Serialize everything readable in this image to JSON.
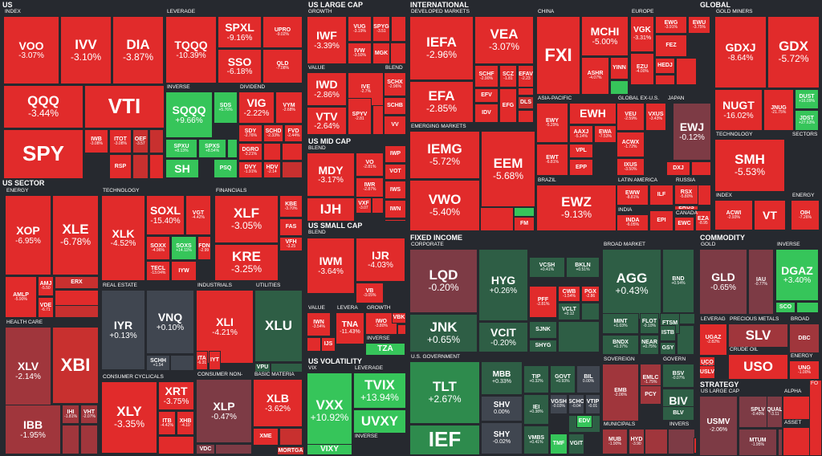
{
  "sections": {
    "us": "US",
    "us_large_cap": "US LARGE CAP",
    "international": "INTERNATIONAL",
    "global": "GLOBAL",
    "us_sector": "US SECTOR",
    "us_mid_cap": "US MID CAP",
    "us_small_cap": "US SMALL CAP",
    "fixed_income": "FIXED INCOME",
    "commodity": "COMMODITY",
    "us_volatility": "US VOLATILITY",
    "strategy": "STRATEGY"
  },
  "groups": {
    "index": "INDEX",
    "leverage": "LEVERAGE",
    "inverse": "INVERSE",
    "dividend": "DIVIDEND",
    "growth": "GROWTH",
    "value": "VALUE",
    "blend": "BLEND",
    "developed_markets": "DEVELOPED MARKETS",
    "china": "CHINA",
    "europe": "EUROPE",
    "asia_pacific": "ASIA-PACIFIC",
    "global_ex_us": "GLOBAL EX-U.S.",
    "japan": "JAPAN",
    "emerging_markets": "EMERGING MARKETS",
    "brazil": "BRAZIL",
    "latin_america": "LATIN AMERICA",
    "russia": "RUSSIA",
    "india": "INDIA",
    "canada": "CANADA",
    "gold_miners": "GOLD MINERS",
    "technology": "TECHNOLOGY",
    "sectors": "SECTORS",
    "g_index": "INDEX",
    "g_energy": "ENERGY",
    "energy": "ENERGY",
    "financials": "FINANCIALS",
    "real_estate": "REAL ESTATE",
    "industrials": "INDUSTRIALS",
    "utilities": "UTILITIES",
    "health_care": "HEALTH CARE",
    "consumer_cyclicals": "CONSUMER CYCLICALS",
    "consumer_non": "CONSUMER NON-",
    "basic_materia": "BASIC MATERIA",
    "mid_blend": "BLEND",
    "small_blend": "BLEND",
    "small_value": "VALUE",
    "small_levera": "LEVERA",
    "small_growth": "GROWTH",
    "small_inverse": "INVERSE",
    "vix": "VIX",
    "vol_leverage": "LEVERAGE",
    "vol_inverse": "INVERSE",
    "corporate": "CORPORATE",
    "broad_market": "BROAD MARKET",
    "us_government": "U.S. GOVERNMENT",
    "sovereign": "SOVEREIGN",
    "govern": "GOVERN",
    "municipals": "MUNICIPALS",
    "invers": "INVERS",
    "gold": "GOLD",
    "c_inverse": "INVERSE",
    "leverag": "LEVERAG",
    "precious_metals": "PRECIOUS METALS",
    "broad": "BROAD",
    "crude_oil": "CRUDE OIL",
    "energy2": "ENERGY",
    "s_us_large_cap": "US LARGE CAP",
    "alpha": "ALPHA",
    "asset": "ASSET",
    "fo": "FO"
  },
  "tiles": [
    {
      "id": "VOO",
      "tk": "VOO",
      "ch": "-3.07%"
    },
    {
      "id": "IVV",
      "tk": "IVV",
      "ch": "-3.10%"
    },
    {
      "id": "DIA",
      "tk": "DIA",
      "ch": "-3.87%"
    },
    {
      "id": "QQQ",
      "tk": "QQQ",
      "ch": "-3.44%"
    },
    {
      "id": "VTI",
      "tk": "VTI",
      "ch": ""
    },
    {
      "id": "SPY",
      "tk": "SPY",
      "ch": ""
    },
    {
      "id": "IWB",
      "tk": "IWB",
      "ch": "-3.08%"
    },
    {
      "id": "ITOT",
      "tk": "ITOT",
      "ch": "-3.08%"
    },
    {
      "id": "OEF",
      "tk": "OEF",
      "ch": "-3.57"
    },
    {
      "id": "RSP",
      "tk": "RSP",
      "ch": ""
    },
    {
      "id": "TQQQ",
      "tk": "TQQQ",
      "ch": "-10.39%"
    },
    {
      "id": "SPXL",
      "tk": "SPXL",
      "ch": "-9.16%"
    },
    {
      "id": "UPRO",
      "tk": "UPRO",
      "ch": "-9.02%"
    },
    {
      "id": "SSO",
      "tk": "SSO",
      "ch": "-6.18%"
    },
    {
      "id": "QLD",
      "tk": "QLD",
      "ch": "-7.08%"
    },
    {
      "id": "SQQQ",
      "tk": "SQQQ",
      "ch": "+9.66%"
    },
    {
      "id": "SDS",
      "tk": "SDS",
      "ch": "+5.76%"
    },
    {
      "id": "SPXU",
      "tk": "SPXU",
      "ch": "+8.13%"
    },
    {
      "id": "SPXS",
      "tk": "SPXS",
      "ch": "+8.54%"
    },
    {
      "id": "SH",
      "tk": "SH",
      "ch": ""
    },
    {
      "id": "PSQ",
      "tk": "PSQ",
      "ch": ""
    },
    {
      "id": "VIG",
      "tk": "VIG",
      "ch": "-2.22%"
    },
    {
      "id": "VYM",
      "tk": "VYM",
      "ch": "-2.68%"
    },
    {
      "id": "SDY",
      "tk": "SDY",
      "ch": "-2.76%"
    },
    {
      "id": "SCHD",
      "tk": "SCHD",
      "ch": "-2.33%"
    },
    {
      "id": "FVD",
      "tk": "FVD",
      "ch": "-2.44%"
    },
    {
      "id": "DGRO",
      "tk": "DGRO",
      "ch": "-3.21%"
    },
    {
      "id": "DVY",
      "tk": "DVY",
      "ch": "-1.91%"
    },
    {
      "id": "HDV",
      "tk": "HDV",
      "ch": "-2.14"
    },
    {
      "id": "IWF",
      "tk": "IWF",
      "ch": "-3.39%"
    },
    {
      "id": "VUG",
      "tk": "VUG",
      "ch": "-3.19%"
    },
    {
      "id": "SPYG",
      "tk": "SPYG",
      "ch": "-3.51"
    },
    {
      "id": "IWD",
      "tk": "IWD",
      "ch": "-2.86%"
    },
    {
      "id": "IVE",
      "tk": "IVE",
      "ch": "-2.7%"
    },
    {
      "id": "SCHX",
      "tk": "SCHX",
      "ch": "-2.96%"
    },
    {
      "id": "VTV",
      "tk": "VTV",
      "ch": "-2.64%"
    },
    {
      "id": "SPYV",
      "tk": "SPYV",
      "ch": "-2.81"
    },
    {
      "id": "SCHB",
      "tk": "SCHB",
      "ch": ""
    },
    {
      "id": "VV",
      "tk": "VV",
      "ch": ""
    },
    {
      "id": "IVW",
      "tk": "IVW",
      "ch": "-3.50%"
    },
    {
      "id": "MGK",
      "tk": "MGK",
      "ch": ""
    },
    {
      "id": "IEFA",
      "tk": "IEFA",
      "ch": "-2.96%"
    },
    {
      "id": "VEA",
      "tk": "VEA",
      "ch": "-3.07%"
    },
    {
      "id": "EFA",
      "tk": "EFA",
      "ch": "-2.85%"
    },
    {
      "id": "SCHF",
      "tk": "SCHF",
      "ch": "-2.90%"
    },
    {
      "id": "SCZ",
      "tk": "SCZ",
      "ch": "-1.81"
    },
    {
      "id": "EFAV",
      "tk": "EFAV",
      "ch": "-2.23"
    },
    {
      "id": "EFV",
      "tk": "EFV",
      "ch": ""
    },
    {
      "id": "IDV",
      "tk": "IDV",
      "ch": ""
    },
    {
      "id": "EFG",
      "tk": "EFG",
      "ch": ""
    },
    {
      "id": "DLS",
      "tk": "DLS",
      "ch": ""
    },
    {
      "id": "FXI",
      "tk": "FXI",
      "ch": ""
    },
    {
      "id": "MCHI",
      "tk": "MCHI",
      "ch": "-5.00%"
    },
    {
      "id": "ASHR",
      "tk": "ASHR",
      "ch": "-4.07%"
    },
    {
      "id": "YINN",
      "tk": "YINN",
      "ch": ""
    },
    {
      "id": "VGK",
      "tk": "VGK",
      "ch": "-3.31%"
    },
    {
      "id": "EWG",
      "tk": "EWG",
      "ch": "-3.91%"
    },
    {
      "id": "EWU",
      "tk": "EWU",
      "ch": "-3.75%"
    },
    {
      "id": "FEZ",
      "tk": "FEZ",
      "ch": ""
    },
    {
      "id": "EZU",
      "tk": "EZU",
      "ch": "-4.00%"
    },
    {
      "id": "HEDJ",
      "tk": "HEDJ",
      "ch": ""
    },
    {
      "id": "EWY",
      "tk": "EWY",
      "ch": "-5.29%"
    },
    {
      "id": "EWH",
      "tk": "EWH",
      "ch": ""
    },
    {
      "id": "AAXJ",
      "tk": "AAXJ",
      "ch": "-5.14%"
    },
    {
      "id": "EWA",
      "tk": "EWA",
      "ch": "-7.53%"
    },
    {
      "id": "EWT",
      "tk": "EWT",
      "ch": "-6.81%"
    },
    {
      "id": "VPL",
      "tk": "VPL",
      "ch": ""
    },
    {
      "id": "EPP",
      "tk": "EPP",
      "ch": ""
    },
    {
      "id": "VEU",
      "tk": "VEU",
      "ch": "-2.59%"
    },
    {
      "id": "VXUS",
      "tk": "VXUS",
      "ch": "-3.43%"
    },
    {
      "id": "ACWX",
      "tk": "ACWX",
      "ch": "-1.72%"
    },
    {
      "id": "IXUS",
      "tk": "IXUS",
      "ch": "-3.50%"
    },
    {
      "id": "EWJ",
      "tk": "EWJ",
      "ch": "-0.12%"
    },
    {
      "id": "DXJ",
      "tk": "DXJ",
      "ch": ""
    },
    {
      "id": "IEMG",
      "tk": "IEMG",
      "ch": "-5.72%"
    },
    {
      "id": "EEM",
      "tk": "EEM",
      "ch": "-5.68%"
    },
    {
      "id": "VWO",
      "tk": "VWO",
      "ch": "-5.40%"
    },
    {
      "id": "EWZ",
      "tk": "EWZ",
      "ch": "-9.13%"
    },
    {
      "id": "EWW",
      "tk": "EWW",
      "ch": "-8.81%"
    },
    {
      "id": "ILF",
      "tk": "ILF",
      "ch": ""
    },
    {
      "id": "RSX",
      "tk": "RSX",
      "ch": "-5.80%"
    },
    {
      "id": "ERUS",
      "tk": "ERUS",
      "ch": ""
    },
    {
      "id": "INDA",
      "tk": "INDA",
      "ch": "-6.05%"
    },
    {
      "id": "EPI",
      "tk": "EPI",
      "ch": ""
    },
    {
      "id": "EWC",
      "tk": "EWC",
      "ch": ""
    },
    {
      "id": "EZA",
      "tk": "EZA",
      "ch": "-8.95"
    },
    {
      "id": "FM",
      "tk": "FM",
      "ch": ""
    },
    {
      "id": "GDXJ",
      "tk": "GDXJ",
      "ch": "-8.64%"
    },
    {
      "id": "GDX",
      "tk": "GDX",
      "ch": "-5.72%"
    },
    {
      "id": "NUGT",
      "tk": "NUGT",
      "ch": "-16.02%"
    },
    {
      "id": "JNUG",
      "tk": "JNUG",
      "ch": "-21.75%"
    },
    {
      "id": "DUST",
      "tk": "DUST",
      "ch": "+16.09%"
    },
    {
      "id": "JDST",
      "tk": "JDST",
      "ch": "+27.63%"
    },
    {
      "id": "SMH",
      "tk": "SMH",
      "ch": "-5.53%"
    },
    {
      "id": "ACWI",
      "tk": "ACWI",
      "ch": "-2.93%"
    },
    {
      "id": "VT",
      "tk": "VT",
      "ch": ""
    },
    {
      "id": "OIH",
      "tk": "OIH",
      "ch": "-7.26%"
    },
    {
      "id": "XOP",
      "tk": "XOP",
      "ch": "-6.95%"
    },
    {
      "id": "XLE",
      "tk": "XLE",
      "ch": "-6.78%"
    },
    {
      "id": "AMLP",
      "tk": "AMLP",
      "ch": "-5.90%"
    },
    {
      "id": "AMJ",
      "tk": "AMJ",
      "ch": "-5.50"
    },
    {
      "id": "VDE",
      "tk": "VDE",
      "ch": "-6.71"
    },
    {
      "id": "ERX",
      "tk": "ERX",
      "ch": ""
    },
    {
      "id": "XLK",
      "tk": "XLK",
      "ch": "-4.52%"
    },
    {
      "id": "SOXL",
      "tk": "SOXL",
      "ch": "-15.40%"
    },
    {
      "id": "VGT",
      "tk": "VGT",
      "ch": "-4.42%"
    },
    {
      "id": "SOXX",
      "tk": "SOXX",
      "ch": "-4.96%"
    },
    {
      "id": "SOXS",
      "tk": "SOXS",
      "ch": "+14.11%"
    },
    {
      "id": "FDN",
      "tk": "FDN",
      "ch": "-2.99"
    },
    {
      "id": "TECL",
      "tk": "TECL",
      "ch": "-13.04%"
    },
    {
      "id": "IYW",
      "tk": "IYW",
      "ch": ""
    },
    {
      "id": "XLF",
      "tk": "XLF",
      "ch": "-3.05%"
    },
    {
      "id": "KBE",
      "tk": "KBE",
      "ch": "-3.70%"
    },
    {
      "id": "FAS",
      "tk": "FAS",
      "ch": ""
    },
    {
      "id": "KRE",
      "tk": "KRE",
      "ch": "-3.25%"
    },
    {
      "id": "VFH",
      "tk": "VFH",
      "ch": "-3.25"
    },
    {
      "id": "IYR",
      "tk": "IYR",
      "ch": "+0.13%"
    },
    {
      "id": "VNQ",
      "tk": "VNQ",
      "ch": "+0.10%"
    },
    {
      "id": "SCHH",
      "tk": "SCHH",
      "ch": "+1.54"
    },
    {
      "id": "XLI",
      "tk": "XLI",
      "ch": "-4.21%"
    },
    {
      "id": "ITA",
      "tk": "ITA",
      "ch": "-6.31"
    },
    {
      "id": "IYT",
      "tk": "IYT",
      "ch": ""
    },
    {
      "id": "XLU",
      "tk": "XLU",
      "ch": ""
    },
    {
      "id": "VPU",
      "tk": "VPU",
      "ch": ""
    },
    {
      "id": "XLV",
      "tk": "XLV",
      "ch": "-2.14%"
    },
    {
      "id": "XBI",
      "tk": "XBI",
      "ch": ""
    },
    {
      "id": "IBB",
      "tk": "IBB",
      "ch": "-1.95%"
    },
    {
      "id": "IHI",
      "tk": "IHI",
      "ch": "-1.81%"
    },
    {
      "id": "VHT",
      "tk": "VHT",
      "ch": "-2.07%"
    },
    {
      "id": "XLY",
      "tk": "XLY",
      "ch": "-3.35%"
    },
    {
      "id": "XRT",
      "tk": "XRT",
      "ch": "-3.75%"
    },
    {
      "id": "ITB",
      "tk": "ITB",
      "ch": "-4.42%"
    },
    {
      "id": "XHB",
      "tk": "XHB",
      "ch": "-4.10"
    },
    {
      "id": "XLP",
      "tk": "XLP",
      "ch": "-0.47%"
    },
    {
      "id": "VDC",
      "tk": "VDC",
      "ch": ""
    },
    {
      "id": "XLB",
      "tk": "XLB",
      "ch": "-3.62%"
    },
    {
      "id": "XME",
      "tk": "XME",
      "ch": ""
    },
    {
      "id": "MORTGA",
      "tk": "MORTGA",
      "ch": ""
    },
    {
      "id": "MDY",
      "tk": "MDY",
      "ch": "-3.17%"
    },
    {
      "id": "VO",
      "tk": "VO",
      "ch": "-2.81%"
    },
    {
      "id": "IJH",
      "tk": "IJH",
      "ch": ""
    },
    {
      "id": "IWR",
      "tk": "IWR",
      "ch": "-2.87%"
    },
    {
      "id": "IWP",
      "tk": "IWP",
      "ch": ""
    },
    {
      "id": "VOT",
      "tk": "VOT",
      "ch": ""
    },
    {
      "id": "IWS",
      "tk": "IWS",
      "ch": ""
    },
    {
      "id": "VXF",
      "tk": "VXF",
      "ch": "-3.07"
    },
    {
      "id": "IWN",
      "tk": "IWN",
      "ch": ""
    },
    {
      "id": "IWM",
      "tk": "IWM",
      "ch": "-3.64%"
    },
    {
      "id": "IJR",
      "tk": "IJR",
      "ch": "-4.03%"
    },
    {
      "id": "VB",
      "tk": "VB",
      "ch": "-3.05%"
    },
    {
      "id": "IWN2",
      "tk": "IWN",
      "ch": "-3.54%"
    },
    {
      "id": "TNA",
      "tk": "TNA",
      "ch": "-11.43%"
    },
    {
      "id": "IWO",
      "tk": "IWO",
      "ch": "-3.80%"
    },
    {
      "id": "VBK",
      "tk": "VBK",
      "ch": ""
    },
    {
      "id": "IJS",
      "tk": "IJS",
      "ch": ""
    },
    {
      "id": "TZA",
      "tk": "TZA",
      "ch": ""
    },
    {
      "id": "VXX",
      "tk": "VXX",
      "ch": "+10.92%"
    },
    {
      "id": "TVIX",
      "tk": "TVIX",
      "ch": "+13.94%"
    },
    {
      "id": "UVXY",
      "tk": "UVXY",
      "ch": ""
    },
    {
      "id": "VIXY",
      "tk": "VIXY",
      "ch": ""
    },
    {
      "id": "LQD",
      "tk": "LQD",
      "ch": "-0.20%"
    },
    {
      "id": "HYG",
      "tk": "HYG",
      "ch": "+0.26%"
    },
    {
      "id": "VCSH",
      "tk": "VCSH",
      "ch": "+0.41%"
    },
    {
      "id": "BKLN",
      "tk": "BKLN",
      "ch": "+0.51%"
    },
    {
      "id": "JNK",
      "tk": "JNK",
      "ch": "+0.65%"
    },
    {
      "id": "PFF",
      "tk": "PFF",
      "ch": "-2.81%"
    },
    {
      "id": "CWB",
      "tk": "CWB",
      "ch": "-1.54%"
    },
    {
      "id": "PGX",
      "tk": "PGX",
      "ch": "-2.86"
    },
    {
      "id": "VCIT",
      "tk": "VCIT",
      "ch": "-0.20%"
    },
    {
      "id": "SJNK",
      "tk": "SJNK",
      "ch": ""
    },
    {
      "id": "SHYG",
      "tk": "SHYG",
      "ch": ""
    },
    {
      "id": "VCLT",
      "tk": "VCLT",
      "ch": "+0.12"
    },
    {
      "id": "AGG",
      "tk": "AGG",
      "ch": "+0.43%"
    },
    {
      "id": "BND",
      "tk": "BND",
      "ch": "+0.54%"
    },
    {
      "id": "MINT",
      "tk": "MINT",
      "ch": "+1.03%"
    },
    {
      "id": "FLOT",
      "tk": "FLOT",
      "ch": "-0.10%"
    },
    {
      "id": "FTSM",
      "tk": "FTSM",
      "ch": ""
    },
    {
      "id": "BNDX",
      "tk": "BNDX",
      "ch": "+0.37%"
    },
    {
      "id": "NEAR",
      "tk": "NEAR",
      "ch": "+0.75%"
    },
    {
      "id": "ISTB",
      "tk": "ISTB",
      "ch": ""
    },
    {
      "id": "GSY",
      "tk": "GSY",
      "ch": ""
    },
    {
      "id": "TLT",
      "tk": "TLT",
      "ch": "+2.67%"
    },
    {
      "id": "IEF",
      "tk": "IEF",
      "ch": ""
    },
    {
      "id": "MBB",
      "tk": "MBB",
      "ch": "+0.33%"
    },
    {
      "id": "SHV",
      "tk": "SHV",
      "ch": "0.00%"
    },
    {
      "id": "SHY",
      "tk": "SHY",
      "ch": "-0.02%"
    },
    {
      "id": "TIP",
      "tk": "TIP",
      "ch": "+0.32%"
    },
    {
      "id": "GOVT",
      "tk": "GOVT",
      "ch": "+0.93%"
    },
    {
      "id": "BIL",
      "tk": "BIL",
      "ch": "0.00%"
    },
    {
      "id": "IEI",
      "tk": "IEI",
      "ch": "+0.38%"
    },
    {
      "id": "VGSH",
      "tk": "VGSH",
      "ch": "-0.03%"
    },
    {
      "id": "SCHO",
      "tk": "SCHO",
      "ch": "-0.04"
    },
    {
      "id": "VTIP",
      "tk": "VTIP",
      "ch": "-0.01"
    },
    {
      "id": "VMBS",
      "tk": "VMBS",
      "ch": "+0.41%"
    },
    {
      "id": "TMF",
      "tk": "TMF",
      "ch": ""
    },
    {
      "id": "SCHR",
      "tk": "SCHR",
      "ch": ""
    },
    {
      "id": "VGIT",
      "tk": "VGIT",
      "ch": ""
    },
    {
      "id": "EDV",
      "tk": "EDV",
      "ch": ""
    },
    {
      "id": "EMB",
      "tk": "EMB",
      "ch": "-2.06%"
    },
    {
      "id": "EMLC",
      "tk": "EMLC",
      "ch": "-1.75%"
    },
    {
      "id": "PCY",
      "tk": "PCY",
      "ch": ""
    },
    {
      "id": "BSV",
      "tk": "BSV",
      "ch": "-0.07%"
    },
    {
      "id": "BIV",
      "tk": "BIV",
      "ch": ""
    },
    {
      "id": "BLV",
      "tk": "BLV",
      "ch": ""
    },
    {
      "id": "MUB",
      "tk": "MUB",
      "ch": "-1.90%"
    },
    {
      "id": "HYD",
      "tk": "HYD",
      "ch": "-3.90"
    },
    {
      "id": "GLD",
      "tk": "GLD",
      "ch": "-0.65%"
    },
    {
      "id": "IAU",
      "tk": "IAU",
      "ch": "-0.77%"
    },
    {
      "id": "DGAZ",
      "tk": "DGAZ",
      "ch": "+3.40%"
    },
    {
      "id": "SCO",
      "tk": "SCO",
      "ch": ""
    },
    {
      "id": "UGAZ",
      "tk": "UGAZ",
      "ch": "-2.82%"
    },
    {
      "id": "SLV",
      "tk": "SLV",
      "ch": ""
    },
    {
      "id": "UCO",
      "tk": "UCO",
      "ch": "-13.98"
    },
    {
      "id": "USLV",
      "tk": "USLV",
      "ch": ""
    },
    {
      "id": "DBC",
      "tk": "DBC",
      "ch": ""
    },
    {
      "id": "USO",
      "tk": "USO",
      "ch": ""
    },
    {
      "id": "UNG",
      "tk": "UNG",
      "ch": "-1.00%"
    },
    {
      "id": "USMV",
      "tk": "USMV",
      "ch": "-2.06%"
    },
    {
      "id": "SPLV",
      "tk": "SPLV",
      "ch": "-0.40%"
    },
    {
      "id": "QUAL",
      "tk": "QUAL",
      "ch": "-3.11"
    },
    {
      "id": "MTUM",
      "tk": "MTUM",
      "ch": "-1.95%"
    }
  ]
}
